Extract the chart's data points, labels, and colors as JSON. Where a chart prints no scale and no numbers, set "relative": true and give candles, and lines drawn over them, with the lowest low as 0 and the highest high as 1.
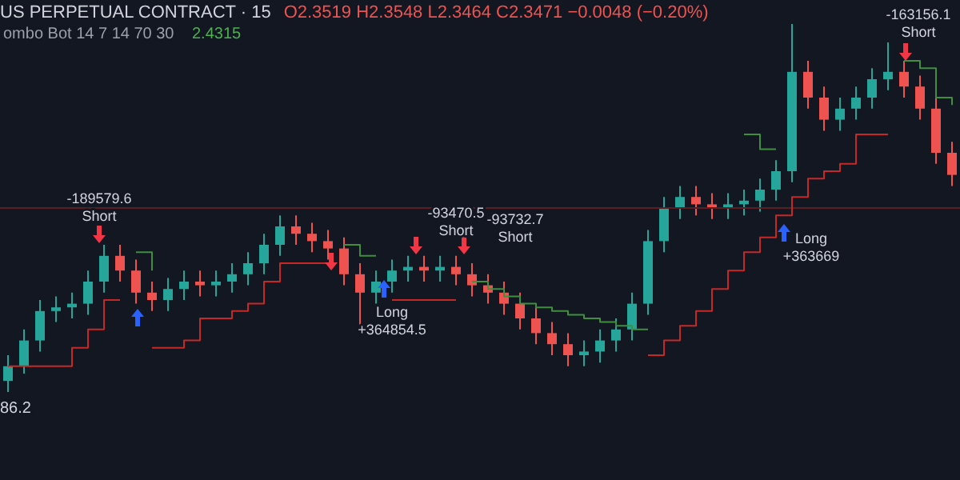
{
  "chart_data": {
    "type": "candlestick",
    "title": "US PERPETUAL CONTRACT · 15",
    "subtitle": "O2.3519 H2.3548 L2.3464 C2.3471 −0.0048 (−0.20%)",
    "relative": true,
    "legend": false,
    "grid": false,
    "categories": [
      null,
      null,
      null,
      null,
      null,
      null,
      null,
      null,
      null,
      null,
      null,
      null,
      null,
      null,
      null,
      null,
      null,
      null,
      null,
      null,
      null,
      null,
      null,
      null,
      null,
      null,
      null,
      null,
      null,
      null,
      null,
      null,
      null,
      null,
      null,
      null,
      null,
      null,
      null,
      null,
      null,
      null,
      null,
      null,
      null,
      null,
      null,
      null,
      null,
      null,
      null,
      null,
      null,
      null,
      null,
      null,
      null,
      null,
      null,
      null
    ],
    "ohlc": [
      [
        0.03,
        0.1,
        0.0,
        0.07
      ],
      [
        0.07,
        0.17,
        0.05,
        0.14
      ],
      [
        0.14,
        0.25,
        0.11,
        0.22
      ],
      [
        0.22,
        0.26,
        0.19,
        0.23
      ],
      [
        0.23,
        0.27,
        0.2,
        0.24
      ],
      [
        0.24,
        0.33,
        0.21,
        0.3
      ],
      [
        0.3,
        0.4,
        0.27,
        0.37
      ],
      [
        0.37,
        0.4,
        0.3,
        0.33
      ],
      [
        0.33,
        0.36,
        0.24,
        0.27
      ],
      [
        0.27,
        0.3,
        0.22,
        0.25
      ],
      [
        0.25,
        0.31,
        0.22,
        0.28
      ],
      [
        0.28,
        0.33,
        0.25,
        0.3
      ],
      [
        0.3,
        0.33,
        0.26,
        0.29
      ],
      [
        0.29,
        0.33,
        0.26,
        0.3
      ],
      [
        0.3,
        0.35,
        0.27,
        0.32
      ],
      [
        0.32,
        0.38,
        0.29,
        0.35
      ],
      [
        0.35,
        0.43,
        0.32,
        0.4
      ],
      [
        0.4,
        0.48,
        0.37,
        0.45
      ],
      [
        0.45,
        0.48,
        0.4,
        0.43
      ],
      [
        0.43,
        0.46,
        0.38,
        0.41
      ],
      [
        0.41,
        0.44,
        0.36,
        0.39
      ],
      [
        0.39,
        0.42,
        0.29,
        0.32
      ],
      [
        0.32,
        0.35,
        0.18,
        0.27
      ],
      [
        0.27,
        0.33,
        0.24,
        0.3
      ],
      [
        0.3,
        0.36,
        0.27,
        0.33
      ],
      [
        0.33,
        0.37,
        0.3,
        0.34
      ],
      [
        0.34,
        0.37,
        0.3,
        0.33
      ],
      [
        0.33,
        0.37,
        0.3,
        0.34
      ],
      [
        0.34,
        0.37,
        0.29,
        0.32
      ],
      [
        0.32,
        0.35,
        0.26,
        0.29
      ],
      [
        0.29,
        0.32,
        0.24,
        0.27
      ],
      [
        0.27,
        0.3,
        0.21,
        0.24
      ],
      [
        0.24,
        0.27,
        0.17,
        0.2
      ],
      [
        0.2,
        0.23,
        0.13,
        0.16
      ],
      [
        0.16,
        0.19,
        0.1,
        0.13
      ],
      [
        0.13,
        0.16,
        0.07,
        0.1
      ],
      [
        0.1,
        0.14,
        0.07,
        0.11
      ],
      [
        0.11,
        0.17,
        0.08,
        0.14
      ],
      [
        0.14,
        0.2,
        0.11,
        0.17
      ],
      [
        0.17,
        0.27,
        0.14,
        0.24
      ],
      [
        0.24,
        0.44,
        0.21,
        0.41
      ],
      [
        0.41,
        0.53,
        0.38,
        0.5
      ],
      [
        0.5,
        0.56,
        0.47,
        0.53
      ],
      [
        0.53,
        0.56,
        0.48,
        0.51
      ],
      [
        0.51,
        0.54,
        0.47,
        0.5
      ],
      [
        0.5,
        0.54,
        0.47,
        0.51
      ],
      [
        0.51,
        0.55,
        0.48,
        0.52
      ],
      [
        0.52,
        0.58,
        0.49,
        0.55
      ],
      [
        0.55,
        0.63,
        0.52,
        0.6
      ],
      [
        0.6,
        1.0,
        0.57,
        0.87
      ],
      [
        0.87,
        0.9,
        0.77,
        0.8
      ],
      [
        0.8,
        0.83,
        0.71,
        0.74
      ],
      [
        0.74,
        0.8,
        0.71,
        0.77
      ],
      [
        0.77,
        0.83,
        0.74,
        0.8
      ],
      [
        0.8,
        0.88,
        0.77,
        0.85
      ],
      [
        0.85,
        0.95,
        0.82,
        0.87
      ],
      [
        0.87,
        0.9,
        0.8,
        0.83
      ],
      [
        0.83,
        0.86,
        0.74,
        0.77
      ],
      [
        0.77,
        0.8,
        0.62,
        0.65
      ],
      [
        0.65,
        0.68,
        0.56,
        0.59
      ]
    ],
    "colors": [
      "#26a69a",
      "#26a69a",
      "#26a69a",
      "#26a69a",
      "#26a69a",
      "#26a69a",
      "#26a69a",
      "#ef5350",
      "#ef5350",
      "#ef5350",
      "#26a69a",
      "#26a69a",
      "#ef5350",
      "#26a69a",
      "#26a69a",
      "#26a69a",
      "#26a69a",
      "#26a69a",
      "#ef5350",
      "#ef5350",
      "#ef5350",
      "#ef5350",
      "#ef5350",
      "#26a69a",
      "#26a69a",
      "#26a69a",
      "#ef5350",
      "#26a69a",
      "#ef5350",
      "#ef5350",
      "#ef5350",
      "#ef5350",
      "#ef5350",
      "#ef5350",
      "#ef5350",
      "#ef5350",
      "#26a69a",
      "#26a69a",
      "#26a69a",
      "#26a69a",
      "#26a69a",
      "#26a69a",
      "#26a69a",
      "#ef5350",
      "#ef5350",
      "#26a69a",
      "#26a69a",
      "#26a69a",
      "#26a69a",
      "#26a69a",
      "#ef5350",
      "#ef5350",
      "#26a69a",
      "#26a69a",
      "#26a69a",
      "#26a69a",
      "#ef5350",
      "#ef5350",
      "#ef5350",
      "#ef5350"
    ],
    "series": [
      {
        "type": "step",
        "color": "#c62828",
        "values": [
          0.07,
          0.07,
          0.07,
          0.07,
          0.12,
          0.17,
          0.25,
          0.25,
          null,
          0.12,
          0.12,
          0.14,
          0.2,
          0.2,
          0.22,
          0.24,
          0.3,
          0.35,
          0.35,
          0.35,
          0.35,
          null,
          null,
          null,
          0.25,
          0.25,
          0.25,
          0.25,
          0.25,
          null,
          null,
          null,
          null,
          null,
          null,
          null,
          null,
          null,
          null,
          null,
          0.1,
          0.14,
          0.18,
          0.22,
          0.28,
          0.33,
          0.38,
          0.42,
          0.48,
          0.53,
          0.58,
          0.6,
          0.62,
          0.7,
          0.7,
          0.7,
          null,
          null,
          null,
          null
        ]
      },
      {
        "type": "step",
        "color": "#3f8f3f",
        "values": [
          null,
          null,
          null,
          null,
          null,
          null,
          null,
          null,
          0.38,
          0.33,
          null,
          null,
          null,
          null,
          null,
          null,
          null,
          null,
          null,
          null,
          null,
          0.4,
          0.37,
          0.37,
          null,
          null,
          null,
          null,
          null,
          0.3,
          0.28,
          0.26,
          0.24,
          0.23,
          0.22,
          0.21,
          0.2,
          0.19,
          0.18,
          0.17,
          0.17,
          null,
          null,
          null,
          null,
          null,
          0.7,
          0.66,
          0.66,
          null,
          null,
          null,
          null,
          null,
          null,
          null,
          0.9,
          0.88,
          0.8,
          0.78
        ]
      }
    ],
    "ref_lines": [
      {
        "axis": "y",
        "value": 0.5,
        "color": "#5a1f24"
      }
    ],
    "annotations": [
      "ombo Bot 14 7 14 70 30",
      "2.4315",
      "86.2",
      "-189579.6 Short",
      "Long +364854.5",
      "-93470.5 Short",
      "-93732.7 Short",
      "Long +363669",
      "-163156.1 Short"
    ]
  }
}
